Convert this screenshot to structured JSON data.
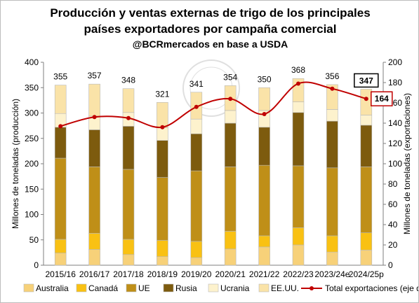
{
  "header": {
    "title_line1": "Producción y ventas externas de trigo de los principales",
    "title_line2": "países exportadores por campaña comercial",
    "subtitle": "@BCRmercados en base a USDA"
  },
  "chart_data": {
    "type": "bar",
    "stacked": true,
    "categories": [
      "2015/16",
      "2016/17",
      "2017/18",
      "2018/19",
      "2019/20",
      "2020/21",
      "2021/22",
      "2022/23",
      "2023/24e",
      "2024/25p"
    ],
    "series": [
      {
        "name": "Australia",
        "color": "#f7d179",
        "values": [
          24,
          31,
          21,
          17,
          15,
          32,
          36,
          40,
          26,
          30
        ]
      },
      {
        "name": "Canadá",
        "color": "#f9c113",
        "values": [
          27,
          32,
          30,
          32,
          32,
          35,
          22,
          34,
          32,
          34
        ]
      },
      {
        "name": "UE",
        "color": "#bf8f18",
        "values": [
          160,
          131,
          138,
          124,
          139,
          127,
          139,
          122,
          134,
          130
        ]
      },
      {
        "name": "Rusia",
        "color": "#7d5b0e",
        "values": [
          61,
          73,
          85,
          73,
          73,
          86,
          75,
          105,
          92,
          82
        ]
      },
      {
        "name": "Ucrania",
        "color": "#fdf2cd",
        "values": [
          27,
          27,
          27,
          25,
          29,
          25,
          33,
          21,
          23,
          20
        ]
      },
      {
        "name": "EE.UU.",
        "color": "#fae3a8",
        "values": [
          56,
          63,
          47,
          50,
          53,
          49,
          45,
          46,
          49,
          51
        ]
      }
    ],
    "totals": [
      355,
      357,
      348,
      321,
      341,
      354,
      350,
      368,
      356,
      347
    ],
    "line": {
      "name": "Total exportaciones (eje der)",
      "color": "#c00000",
      "axis": "right",
      "values": [
        137,
        146,
        145,
        136,
        156,
        164,
        149,
        179,
        174,
        164
      ]
    },
    "last_line_label": "164",
    "ylabel_left": "Millones de toneladas (producción)",
    "ylabel_right": "Millones de toneladas (exportaciones)",
    "ylim_left": [
      0,
      400
    ],
    "ylim_right": [
      0,
      200
    ],
    "yticks_left": [
      "0",
      "50",
      "100",
      "150",
      "200",
      "250",
      "300",
      "350",
      "400"
    ],
    "yticks_right": [
      "0",
      "20",
      "40",
      "60",
      "80",
      "100",
      "120",
      "140",
      "160",
      "180",
      "200"
    ],
    "grid": false,
    "legend_position": "bottom"
  }
}
